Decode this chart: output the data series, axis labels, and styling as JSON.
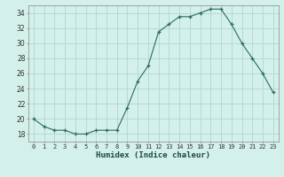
{
  "x": [
    0,
    1,
    2,
    3,
    4,
    5,
    6,
    7,
    8,
    9,
    10,
    11,
    12,
    13,
    14,
    15,
    16,
    17,
    18,
    19,
    20,
    21,
    22,
    23
  ],
  "y": [
    20,
    19,
    18.5,
    18.5,
    18,
    18,
    18.5,
    18.5,
    18.5,
    21.5,
    25,
    27,
    31.5,
    32.5,
    33.5,
    33.5,
    34,
    34.5,
    34.5,
    32.5,
    30,
    28,
    26,
    23.5
  ],
  "line_color": "#2d6b5e",
  "marker_color": "#2d6b5e",
  "bg_color": "#d4f0eb",
  "grid_color": "#aed8d0",
  "xlabel": "Humidex (Indice chaleur)",
  "xlim": [
    -0.5,
    23.5
  ],
  "ylim": [
    17,
    35
  ],
  "yticks": [
    18,
    20,
    22,
    24,
    26,
    28,
    30,
    32,
    34
  ],
  "xtick_labels": [
    "0",
    "1",
    "2",
    "3",
    "4",
    "5",
    "6",
    "7",
    "8",
    "9",
    "10",
    "11",
    "12",
    "13",
    "14",
    "15",
    "16",
    "17",
    "18",
    "19",
    "20",
    "21",
    "22",
    "23"
  ]
}
